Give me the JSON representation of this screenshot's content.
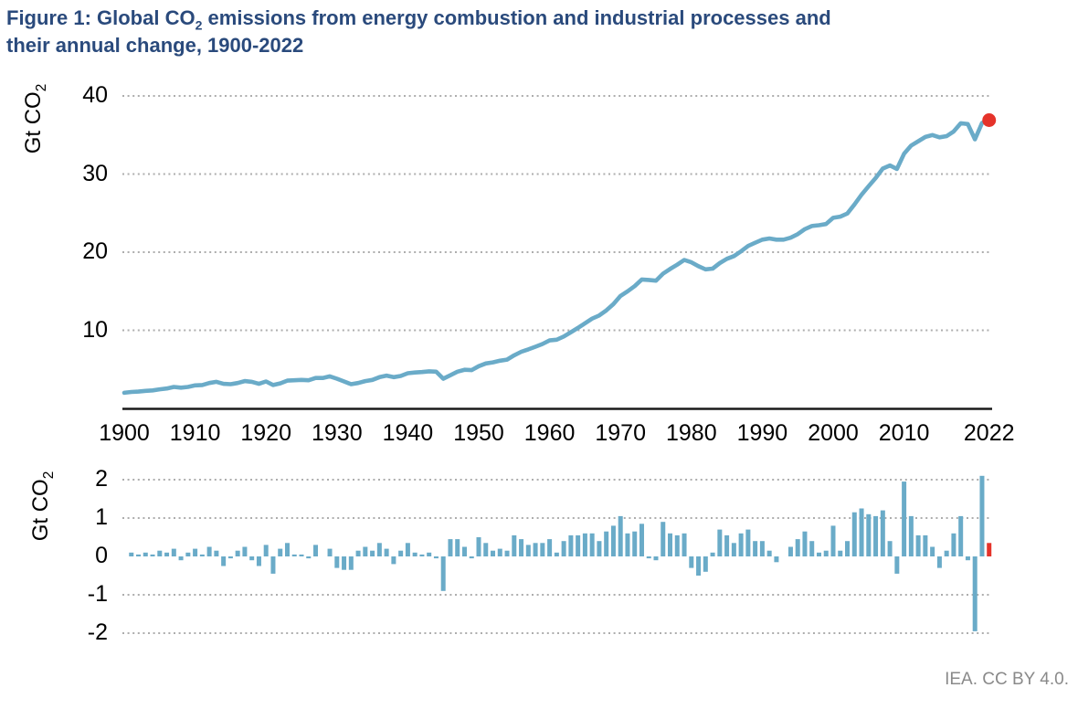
{
  "title": {
    "full": "Figure 1: Global CO2 emissions from energy combustion and industrial processes and their annual change, 1900-2022",
    "line1_pre": "Figure 1: Global CO",
    "line1_sub": "2",
    "line1_post": " emissions from energy combustion and industrial processes and",
    "line2": "their annual change, 1900-2022"
  },
  "attribution": "IEA. CC BY 4.0.",
  "colors": {
    "series_blue": "#6aabc8",
    "highlight_red": "#e5332a",
    "title_navy": "#2a4a7c",
    "grid_gray": "#adadad",
    "axis_black": "#1a1a1a",
    "attribution_gray": "#8a8a8a"
  },
  "ylabel_parts": {
    "main": "Gt CO",
    "sub": "2"
  },
  "chart_data": [
    {
      "type": "line",
      "title": "Global CO2 emissions from energy combustion and industrial processes",
      "ylabel": "Gt CO2",
      "years": {
        "start": 1900,
        "end": 2022
      },
      "values": [
        2.0,
        2.1,
        2.15,
        2.25,
        2.3,
        2.45,
        2.55,
        2.75,
        2.65,
        2.75,
        2.95,
        3.0,
        3.25,
        3.4,
        3.15,
        3.1,
        3.25,
        3.5,
        3.4,
        3.15,
        3.45,
        3.0,
        3.2,
        3.55,
        3.6,
        3.65,
        3.6,
        3.9,
        3.9,
        4.1,
        3.8,
        3.45,
        3.1,
        3.25,
        3.5,
        3.65,
        4.0,
        4.2,
        4.0,
        4.15,
        4.5,
        4.6,
        4.65,
        4.75,
        4.7,
        3.8,
        4.25,
        4.7,
        4.95,
        4.9,
        5.4,
        5.75,
        5.9,
        6.1,
        6.25,
        6.8,
        7.25,
        7.55,
        7.9,
        8.25,
        8.7,
        8.8,
        9.2,
        9.75,
        10.3,
        10.9,
        11.5,
        11.9,
        12.55,
        13.35,
        14.4,
        15.0,
        15.65,
        16.5,
        16.45,
        16.35,
        17.25,
        17.85,
        18.4,
        19.0,
        18.7,
        18.2,
        17.8,
        17.9,
        18.6,
        19.15,
        19.5,
        20.1,
        20.8,
        21.2,
        21.6,
        21.75,
        21.6,
        21.6,
        21.85,
        22.3,
        22.95,
        23.35,
        23.45,
        23.6,
        24.4,
        24.55,
        24.95,
        26.1,
        27.35,
        28.45,
        29.5,
        30.7,
        31.1,
        30.65,
        32.6,
        33.65,
        34.2,
        34.75,
        35.0,
        34.7,
        34.85,
        35.45,
        36.5,
        36.4,
        34.45,
        36.55,
        36.9
      ],
      "yticks": [
        40,
        30,
        20,
        10
      ],
      "xticks": [
        1900,
        1910,
        1920,
        1930,
        1940,
        1950,
        1960,
        1970,
        1980,
        1990,
        2000,
        2010,
        2022
      ],
      "ylim": [
        0,
        42
      ],
      "grid": "dotted-horizontal",
      "end_marker": {
        "year": 2022,
        "value": 36.9,
        "color": "#e5332a"
      }
    },
    {
      "type": "bar",
      "title": "Annual change in global CO2 emissions",
      "ylabel": "Gt CO2",
      "years": {
        "start": 1901,
        "end": 2022
      },
      "values": [
        0.1,
        0.05,
        0.1,
        0.05,
        0.15,
        0.1,
        0.2,
        -0.1,
        0.1,
        0.2,
        0.05,
        0.25,
        0.15,
        -0.25,
        -0.05,
        0.15,
        0.25,
        -0.1,
        -0.25,
        0.3,
        -0.45,
        0.2,
        0.35,
        0.05,
        0.05,
        -0.05,
        0.3,
        0,
        0.2,
        -0.3,
        -0.35,
        -0.35,
        0.15,
        0.25,
        0.15,
        0.35,
        0.2,
        -0.2,
        0.15,
        0.35,
        0.1,
        0.05,
        0.1,
        -0.05,
        -0.9,
        0.45,
        0.45,
        0.25,
        -0.05,
        0.5,
        0.35,
        0.15,
        0.2,
        0.15,
        0.55,
        0.45,
        0.3,
        0.35,
        0.35,
        0.45,
        0.1,
        0.4,
        0.55,
        0.55,
        0.6,
        0.6,
        0.4,
        0.65,
        0.8,
        1.05,
        0.6,
        0.65,
        0.85,
        -0.05,
        -0.1,
        0.9,
        0.6,
        0.55,
        0.6,
        -0.3,
        -0.5,
        -0.4,
        0.1,
        0.7,
        0.55,
        0.35,
        0.6,
        0.7,
        0.4,
        0.4,
        0.15,
        -0.15,
        0,
        0.25,
        0.45,
        0.65,
        0.4,
        0.1,
        0.15,
        0.8,
        0.15,
        0.4,
        1.15,
        1.25,
        1.1,
        1.05,
        1.2,
        0.4,
        -0.45,
        1.95,
        1.05,
        0.55,
        0.55,
        0.25,
        -0.3,
        0.15,
        0.6,
        1.05,
        -0.1,
        -1.95,
        2.1,
        0.35
      ],
      "yticks": [
        2,
        1,
        0,
        -1,
        -2
      ],
      "ylim": [
        -2.3,
        2.4
      ],
      "grid": "dotted-horizontal",
      "highlight": {
        "year": 2022,
        "value": 0.35,
        "color": "#e5332a"
      }
    }
  ]
}
